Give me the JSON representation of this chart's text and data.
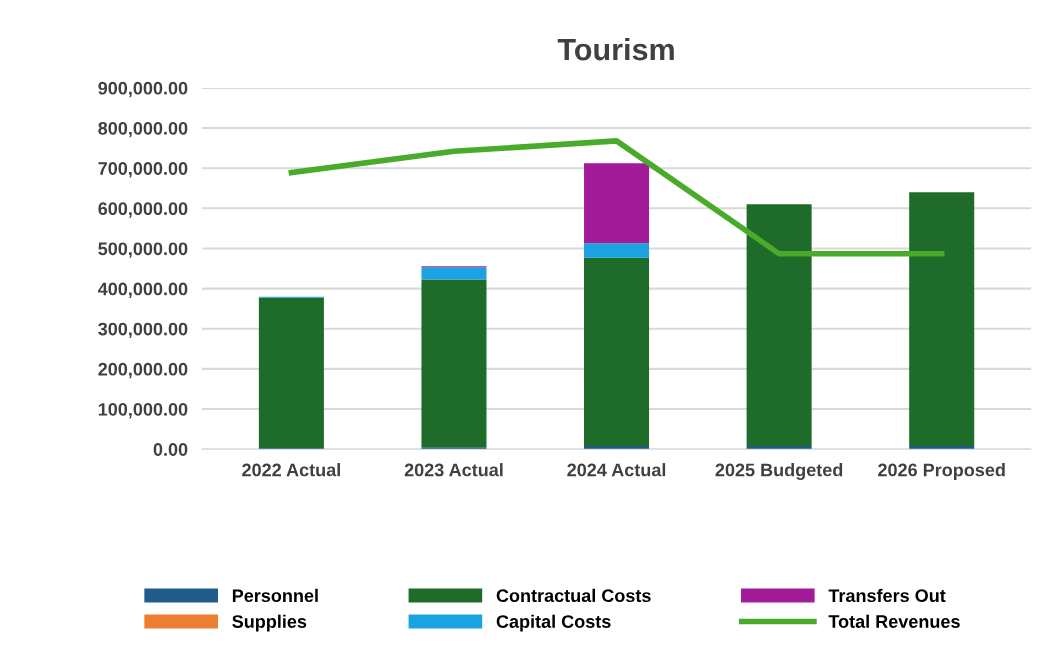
{
  "chart_data": {
    "type": "bar",
    "title": "Tourism",
    "stacked": true,
    "categories": [
      "2022 Actual",
      "2023 Actual",
      "2024 Actual",
      "2025 Budgeted",
      "2026 Proposed"
    ],
    "series": [
      {
        "name": "Personnel",
        "color": "#1f5c8a",
        "values": [
          3000,
          5000,
          8000,
          8000,
          8000
        ]
      },
      {
        "name": "Supplies",
        "color": "#ed7d31",
        "values": [
          0,
          0,
          0,
          0,
          0
        ]
      },
      {
        "name": "Contractual Costs",
        "color": "#1e6b2a",
        "values": [
          374000,
          418000,
          469000,
          602000,
          632000
        ]
      },
      {
        "name": "Capital Costs",
        "color": "#1aa3e0",
        "values": [
          3000,
          30000,
          36000,
          0,
          0
        ]
      },
      {
        "name": "Transfers Out",
        "color": "#a21c9a",
        "values": [
          0,
          3000,
          199000,
          0,
          0
        ]
      },
      {
        "name": "Total Revenues",
        "color": "#4aaa2a",
        "type": "line",
        "values": [
          689000,
          742000,
          768000,
          487000,
          487000
        ]
      }
    ],
    "ylim": [
      0,
      900000
    ],
    "yticks": [
      {
        "value": 0,
        "label": "0.00"
      },
      {
        "value": 100000,
        "label": "100,000.00"
      },
      {
        "value": 200000,
        "label": "200,000.00"
      },
      {
        "value": 300000,
        "label": "300,000.00"
      },
      {
        "value": 400000,
        "label": "400,000.00"
      },
      {
        "value": 500000,
        "label": "500,000.00"
      },
      {
        "value": 600000,
        "label": "600,000.00"
      },
      {
        "value": 700000,
        "label": "700,000.00"
      },
      {
        "value": 800000,
        "label": "800,000.00"
      },
      {
        "value": 900000,
        "label": "900,000.00"
      }
    ],
    "grid": "y",
    "legend": "bottom",
    "marker": "none",
    "line_style": "solid"
  }
}
